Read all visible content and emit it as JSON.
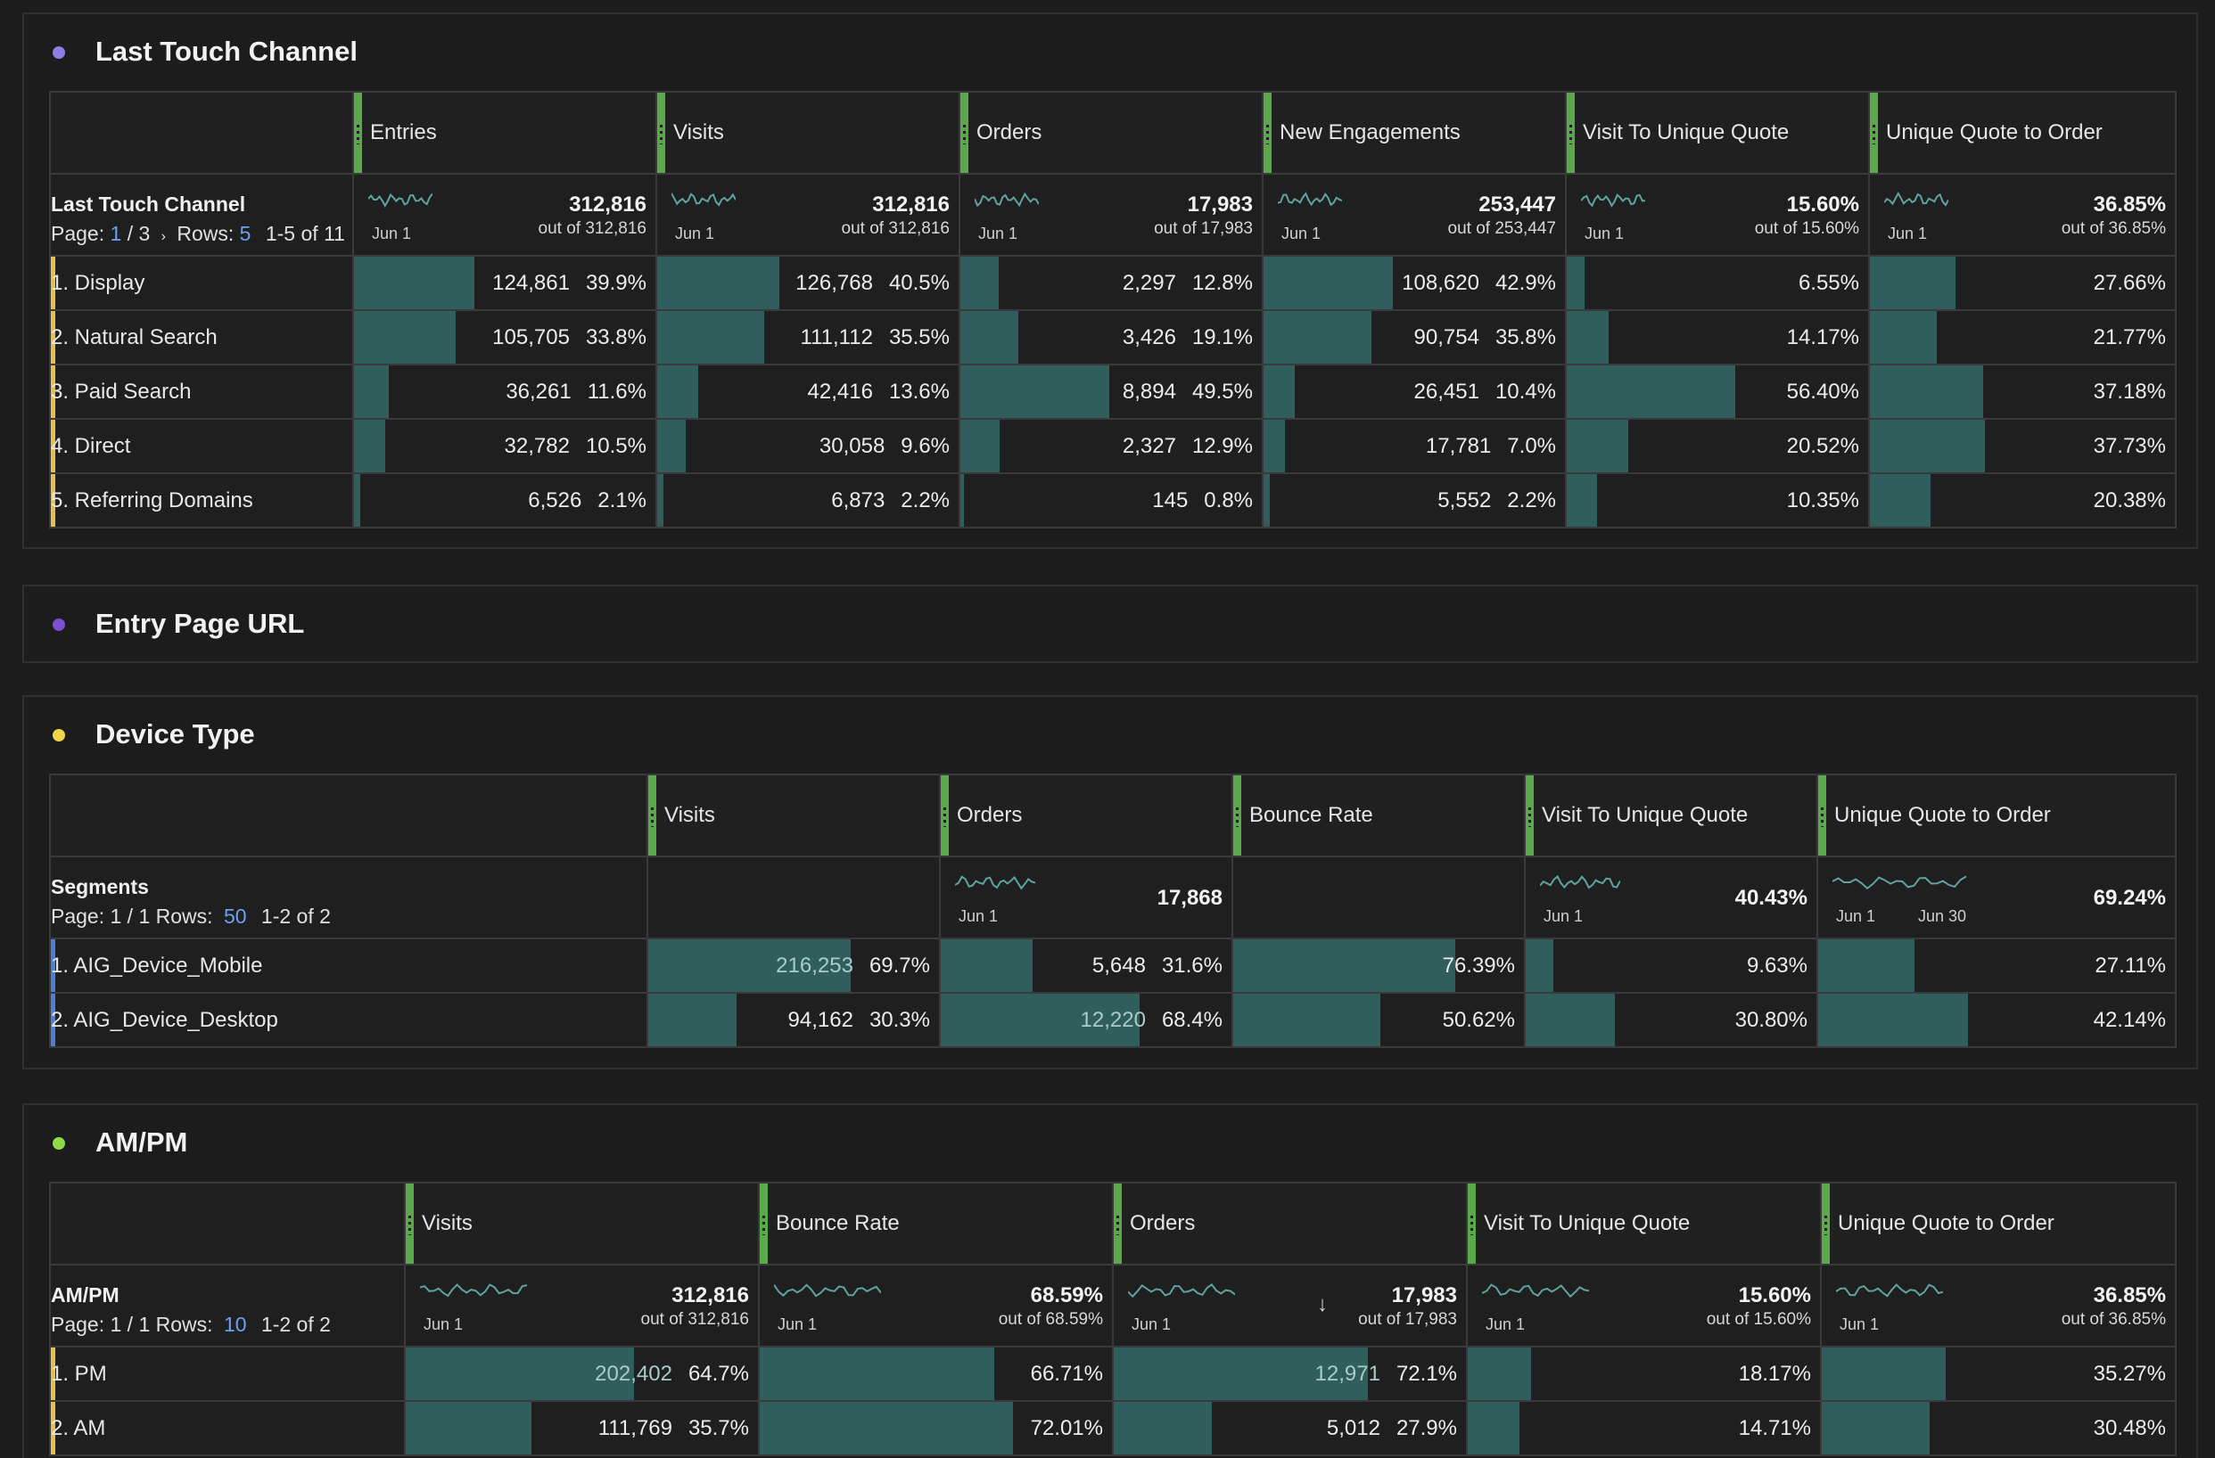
{
  "colors": {
    "dot_last_touch": "#8d7fe6",
    "dot_entry_page": "#7b4fcf",
    "dot_device": "#f0d54a",
    "dot_ampm": "#8cdc4a",
    "grip": "#5aa94a",
    "bar_fill": "#2f5e5d",
    "link": "#6aa1f0"
  },
  "panels": {
    "last_touch": {
      "title": "Last Touch Channel",
      "dim_name": "Last Touch Channel",
      "page_label": "Page:",
      "page_current": "1",
      "page_total": "/ 3",
      "next_icon": "chevron-right-icon",
      "rows_label": "Rows:",
      "rows_value": "5",
      "range": "1-5 of 11",
      "columns": [
        {
          "name": "Entries",
          "spark_label": "Jun 1",
          "total": "312,816",
          "sub": "out of 312,816"
        },
        {
          "name": "Visits",
          "spark_label": "Jun 1",
          "total": "312,816",
          "sub": "out of 312,816"
        },
        {
          "name": "Orders",
          "spark_label": "Jun 1",
          "total": "17,983",
          "sub": "out of 17,983"
        },
        {
          "name": "New Engagements",
          "spark_label": "Jun 1",
          "total": "253,447",
          "sub": "out of 253,447"
        },
        {
          "name": "Visit To Unique Quote",
          "spark_label": "Jun 1",
          "total": "15.60%",
          "sub": "out of 15.60%"
        },
        {
          "name": "Unique Quote to Order",
          "spark_label": "Jun 1",
          "total": "36.85%",
          "sub": "out of 36.85%"
        }
      ],
      "rows": [
        {
          "label": "1.  Display",
          "cells": [
            {
              "num": "124,861",
              "pct": "39.9%",
              "fill": 0.399
            },
            {
              "num": "126,768",
              "pct": "40.5%",
              "fill": 0.405
            },
            {
              "num": "2,297",
              "pct": "12.8%",
              "fill": 0.128
            },
            {
              "num": "108,620",
              "pct": "42.9%",
              "fill": 0.429
            },
            {
              "num": "",
              "pct": "6.55%",
              "fill": 0.06
            },
            {
              "num": "",
              "pct": "27.66%",
              "fill": 0.28
            }
          ]
        },
        {
          "label": "2.  Natural Search",
          "cells": [
            {
              "num": "105,705",
              "pct": "33.8%",
              "fill": 0.338
            },
            {
              "num": "111,112",
              "pct": "35.5%",
              "fill": 0.355
            },
            {
              "num": "3,426",
              "pct": "19.1%",
              "fill": 0.191
            },
            {
              "num": "90,754",
              "pct": "35.8%",
              "fill": 0.358
            },
            {
              "num": "",
              "pct": "14.17%",
              "fill": 0.14
            },
            {
              "num": "",
              "pct": "21.77%",
              "fill": 0.22
            }
          ]
        },
        {
          "label": "3.  Paid Search",
          "cells": [
            {
              "num": "36,261",
              "pct": "11.6%",
              "fill": 0.116
            },
            {
              "num": "42,416",
              "pct": "13.6%",
              "fill": 0.136
            },
            {
              "num": "8,894",
              "pct": "49.5%",
              "fill": 0.495
            },
            {
              "num": "26,451",
              "pct": "10.4%",
              "fill": 0.104
            },
            {
              "num": "",
              "pct": "56.40%",
              "fill": 0.56
            },
            {
              "num": "",
              "pct": "37.18%",
              "fill": 0.37
            }
          ]
        },
        {
          "label": "4.  Direct",
          "cells": [
            {
              "num": "32,782",
              "pct": "10.5%",
              "fill": 0.105
            },
            {
              "num": "30,058",
              "pct": "9.6%",
              "fill": 0.096
            },
            {
              "num": "2,327",
              "pct": "12.9%",
              "fill": 0.129
            },
            {
              "num": "17,781",
              "pct": "7.0%",
              "fill": 0.07
            },
            {
              "num": "",
              "pct": "20.52%",
              "fill": 0.205
            },
            {
              "num": "",
              "pct": "37.73%",
              "fill": 0.377
            }
          ]
        },
        {
          "label": "5.  Referring Domains",
          "cells": [
            {
              "num": "6,526",
              "pct": "2.1%",
              "fill": 0.021
            },
            {
              "num": "6,873",
              "pct": "2.2%",
              "fill": 0.022
            },
            {
              "num": "145",
              "pct": "0.8%",
              "fill": 0.008
            },
            {
              "num": "5,552",
              "pct": "2.2%",
              "fill": 0.022
            },
            {
              "num": "",
              "pct": "10.35%",
              "fill": 0.1
            },
            {
              "num": "",
              "pct": "20.38%",
              "fill": 0.2
            }
          ]
        }
      ]
    },
    "entry_page": {
      "title": "Entry Page URL"
    },
    "device": {
      "title": "Device Type",
      "dim_name": "Segments",
      "page_label": "Page: 1 / 1  Rows:",
      "rows_value": "50",
      "range": "1-2 of 2",
      "columns": [
        {
          "name": "Visits",
          "spark_label": "",
          "total": "",
          "sub": ""
        },
        {
          "name": "Orders",
          "spark_label": "Jun 1",
          "total": "17,868",
          "sub": ""
        },
        {
          "name": "Bounce Rate",
          "spark_label": "",
          "total": "",
          "sub": ""
        },
        {
          "name": "Visit To Unique Quote",
          "spark_label": "Jun 1",
          "total": "40.43%",
          "sub": ""
        },
        {
          "name": "Unique Quote to Order",
          "spark_label": "Jun 1",
          "spark_label2": "Jun 30",
          "total": "69.24%",
          "sub": ""
        }
      ],
      "rows": [
        {
          "label": "1.  AIG_Device_Mobile",
          "cells": [
            {
              "num": "216,253",
              "pct": "69.7%",
              "fill": 0.697
            },
            {
              "num": "5,648",
              "pct": "31.6%",
              "fill": 0.316
            },
            {
              "num": "",
              "pct": "76.39%",
              "fill": 0.764
            },
            {
              "num": "",
              "pct": "9.63%",
              "fill": 0.096
            },
            {
              "num": "",
              "pct": "27.11%",
              "fill": 0.271
            }
          ]
        },
        {
          "label": "2.  AIG_Device_Desktop",
          "cells": [
            {
              "num": "94,162",
              "pct": "30.3%",
              "fill": 0.303
            },
            {
              "num": "12,220",
              "pct": "68.4%",
              "fill": 0.684
            },
            {
              "num": "",
              "pct": "50.62%",
              "fill": 0.506
            },
            {
              "num": "",
              "pct": "30.80%",
              "fill": 0.308
            },
            {
              "num": "",
              "pct": "42.14%",
              "fill": 0.421
            }
          ]
        }
      ]
    },
    "ampm": {
      "title": "AM/PM",
      "dim_name": "AM/PM",
      "page_label": "Page: 1 / 1  Rows:",
      "rows_value": "10",
      "range": "1-2 of 2",
      "columns": [
        {
          "name": "Visits",
          "spark_label": "Jun 1",
          "total": "312,816",
          "sub": "out of 312,816"
        },
        {
          "name": "Bounce Rate",
          "spark_label": "Jun 1",
          "total": "68.59%",
          "sub": "out of 68.59%"
        },
        {
          "name": "Orders",
          "spark_label": "Jun 1",
          "total": "17,983",
          "sub": "out of 17,983"
        },
        {
          "name": "Visit To Unique Quote",
          "spark_label": "Jun 1",
          "total": "15.60%",
          "sub": "out of 15.60%"
        },
        {
          "name": "Unique Quote to Order",
          "spark_label": "Jun 1",
          "total": "36.85%",
          "sub": "out of 36.85%"
        }
      ],
      "rows": [
        {
          "label": "1.  PM",
          "cells": [
            {
              "num": "202,402",
              "pct": "64.7%",
              "fill": 0.647
            },
            {
              "num": "",
              "pct": "66.71%",
              "fill": 0.667
            },
            {
              "num": "12,971",
              "pct": "72.1%",
              "fill": 0.721
            },
            {
              "num": "",
              "pct": "18.17%",
              "fill": 0.18
            },
            {
              "num": "",
              "pct": "35.27%",
              "fill": 0.35
            }
          ]
        },
        {
          "label": "2.  AM",
          "cells": [
            {
              "num": "111,769",
              "pct": "35.7%",
              "fill": 0.357
            },
            {
              "num": "",
              "pct": "72.01%",
              "fill": 0.72
            },
            {
              "num": "5,012",
              "pct": "27.9%",
              "fill": 0.279
            },
            {
              "num": "",
              "pct": "14.71%",
              "fill": 0.147
            },
            {
              "num": "",
              "pct": "30.48%",
              "fill": 0.305
            }
          ]
        }
      ]
    }
  }
}
